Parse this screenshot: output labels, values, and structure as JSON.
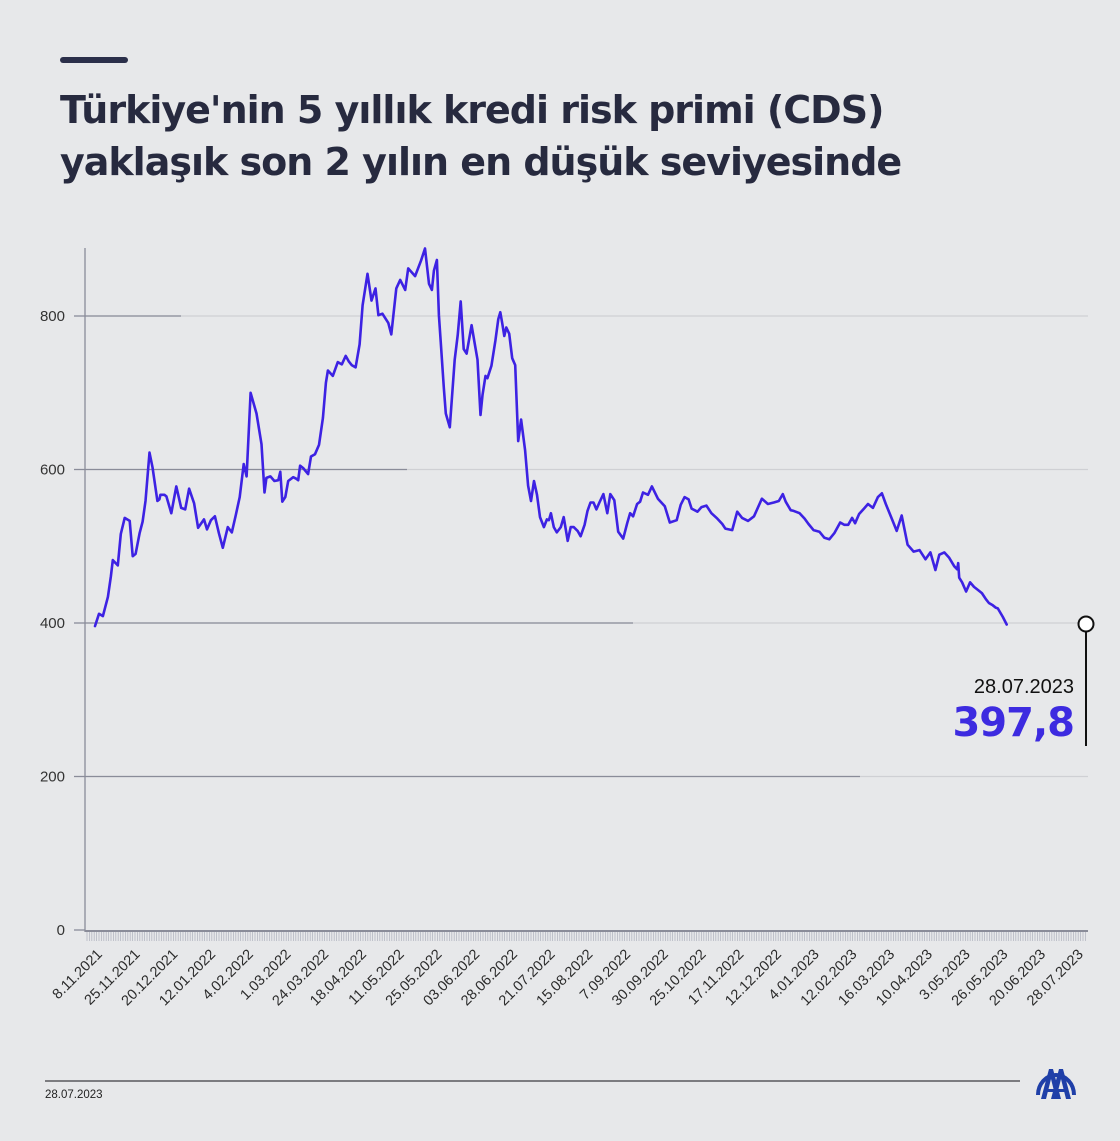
{
  "header": {
    "title_line1": "Türkiye'nin 5 yıllık kredi risk primi (CDS)",
    "title_line2": "yaklaşık son 2 yılın en düşük seviyesinde"
  },
  "annotation": {
    "date": "28.07.2023",
    "value": "397,8"
  },
  "footer": {
    "date": "28.07.2023",
    "logo": "aa-logo-icon"
  },
  "colors": {
    "background": "#e7e8ea",
    "line": "#3d22e3",
    "title": "#272a3f",
    "annotation_value": "#3d2be0",
    "logo": "#1f3fa8"
  },
  "chart_data": {
    "type": "line",
    "title": "Türkiye'nin 5 yıllık kredi risk primi (CDS) yaklaşık son 2 yılın en düşük seviyesinde",
    "xlabel": "",
    "ylabel": "",
    "ylim": [
      0,
      900
    ],
    "yticks": [
      0,
      200,
      400,
      600,
      800
    ],
    "ytick_labels": [
      "0",
      "200",
      "400",
      "600",
      "800"
    ],
    "xtick_labels": [
      "8.11.2021",
      "25.11.2021",
      "20.12.2021",
      "12.01.2022",
      "4.02.2022",
      "1.03.2022",
      "24.03.2022",
      "18.04.2022",
      "11.05.2022",
      "25.05.2022",
      "03.06.2022",
      "28.06.2022",
      "21.07.2022",
      "15.08.2022",
      "7.09.2022",
      "30.09.2022",
      "25.10.2022",
      "17.11.2022",
      "12.12.2022",
      "4.01.2023",
      "12.02.2023",
      "16.03.2023",
      "10.04.2023",
      "3.05.2023",
      "26.05.2023",
      "20.06.2023",
      "28.07.2023"
    ],
    "grid": true,
    "legend": "none",
    "series": [
      {
        "name": "CDS (5Y)",
        "x_frac": [
          0,
          0.004,
          0.008,
          0.013,
          0.016,
          0.018,
          0.023,
          0.026,
          0.03,
          0.035,
          0.038,
          0.041,
          0.045,
          0.048,
          0.051,
          0.055,
          0.058,
          0.063,
          0.065,
          0.066,
          0.07,
          0.072,
          0.077,
          0.082,
          0.087,
          0.091,
          0.095,
          0.1,
          0.104,
          0.11,
          0.113,
          0.117,
          0.121,
          0.125,
          0.129,
          0.134,
          0.138,
          0.142,
          0.146,
          0.15,
          0.153,
          0.157,
          0.163,
          0.168,
          0.171,
          0.173,
          0.177,
          0.181,
          0.185,
          0.187,
          0.189,
          0.192,
          0.195,
          0.2,
          0.203,
          0.205,
          0.207,
          0.21,
          0.215,
          0.218,
          0.222,
          0.226,
          0.23,
          0.233,
          0.235,
          0.24,
          0.245,
          0.249,
          0.253,
          0.256,
          0.259,
          0.263,
          0.267,
          0.27,
          0.275,
          0.279,
          0.283,
          0.286,
          0.29,
          0.296,
          0.299,
          0.304,
          0.308,
          0.313,
          0.316,
          0.323,
          0.329,
          0.333,
          0.337,
          0.34,
          0.342,
          0.345,
          0.347,
          0.349,
          0.352,
          0.354,
          0.358,
          0.363,
          0.366,
          0.369,
          0.372,
          0.375,
          0.38,
          0.383,
          0.386,
          0.389,
          0.391,
          0.394,
          0.396,
          0.4,
          0.404,
          0.407,
          0.409,
          0.411,
          0.413,
          0.415,
          0.418,
          0.421,
          0.424,
          0.427,
          0.43,
          0.434,
          0.437,
          0.44,
          0.443,
          0.446,
          0.449,
          0.453,
          0.456,
          0.458,
          0.46,
          0.463,
          0.466,
          0.47,
          0.473,
          0.477,
          0.48,
          0.483,
          0.487,
          0.49,
          0.494,
          0.497,
          0.5,
          0.503,
          0.506,
          0.509,
          0.513,
          0.517,
          0.52,
          0.524,
          0.528,
          0.533,
          0.537,
          0.54,
          0.543,
          0.547,
          0.55,
          0.553,
          0.558,
          0.562,
          0.568,
          0.575,
          0.58,
          0.587,
          0.591,
          0.595,
          0.599,
          0.602,
          0.608,
          0.612,
          0.617,
          0.622,
          0.628,
          0.633,
          0.636,
          0.643,
          0.648,
          0.653,
          0.659,
          0.665,
          0.673,
          0.679,
          0.685,
          0.69,
          0.694,
          0.697,
          0.702,
          0.705,
          0.711,
          0.716,
          0.72,
          0.725,
          0.731,
          0.736,
          0.741,
          0.746,
          0.752,
          0.756,
          0.76,
          0.764,
          0.767,
          0.771,
          0.776,
          0.78,
          0.785,
          0.79,
          0.794,
          0.798,
          0.803,
          0.809,
          0.814,
          0.82,
          0.826,
          0.832,
          0.838,
          0.843,
          0.848,
          0.852,
          0.857,
          0.862,
          0.867,
          0.87,
          0.871,
          0.872,
          0.875,
          0.879,
          0.883,
          0.887,
          0.891,
          0.895,
          0.899,
          0.902,
          0.906,
          0.909,
          0.911,
          0.916,
          0.92,
          0.924,
          0.929,
          0.933,
          0.937,
          0.942,
          0.947,
          0.953,
          0.958,
          0.961,
          0.965,
          0.968,
          0.973,
          0.977,
          0.98,
          0.985,
          0.99,
          0.993,
          0.996,
          1
        ],
        "values": [
          396,
          412,
          409,
          434,
          461,
          482,
          475,
          516,
          537,
          533,
          487,
          490,
          517,
          532,
          559,
          622,
          603,
          559,
          561,
          567,
          567,
          565,
          543,
          578,
          550,
          548,
          575,
          556,
          524,
          535,
          522,
          534,
          539,
          517,
          498,
          525,
          518,
          540,
          564,
          607,
          591,
          700,
          673,
          633,
          570,
          589,
          591,
          585,
          586,
          597,
          558,
          564,
          585,
          590,
          588,
          586,
          605,
          602,
          594,
          617,
          620,
          632,
          667,
          713,
          729,
          722,
          740,
          737,
          748,
          741,
          736,
          733,
          763,
          814,
          855,
          820,
          836,
          801,
          803,
          791,
          776,
          836,
          847,
          834,
          862,
          852,
          872,
          888,
          842,
          834,
          859,
          873,
          801,
          763,
          707,
          673,
          655,
          743,
          775,
          819,
          757,
          751,
          788,
          765,
          743,
          671,
          697,
          722,
          719,
          735,
          768,
          796,
          805,
          790,
          774,
          785,
          777,
          745,
          736,
          637,
          665,
          625,
          579,
          559,
          585,
          567,
          538,
          525,
          535,
          534,
          543,
          525,
          518,
          525,
          538,
          507,
          525,
          525,
          520,
          513,
          528,
          546,
          557,
          557,
          548,
          557,
          568,
          543,
          568,
          560,
          519,
          510,
          530,
          543,
          539,
          555,
          558,
          570,
          567,
          578,
          562,
          552,
          531,
          534,
          554,
          564,
          561,
          549,
          545,
          551,
          553,
          543,
          536,
          529,
          523,
          521,
          545,
          537,
          533,
          539,
          562,
          555,
          557,
          559,
          568,
          558,
          547,
          546,
          543,
          536,
          529,
          521,
          519,
          511,
          509,
          517,
          531,
          528,
          528,
          537,
          530,
          542,
          549,
          555,
          550,
          564,
          569,
          555,
          539,
          520,
          540,
          502,
          493,
          495,
          483,
          492,
          469,
          489,
          492,
          485,
          474,
          470,
          478,
          459,
          453,
          441,
          453,
          447,
          443,
          439,
          431,
          426,
          423,
          420,
          419,
          408,
          398
        ]
      }
    ],
    "last_point": {
      "date": "28.07.2023",
      "value": 397.8
    }
  }
}
